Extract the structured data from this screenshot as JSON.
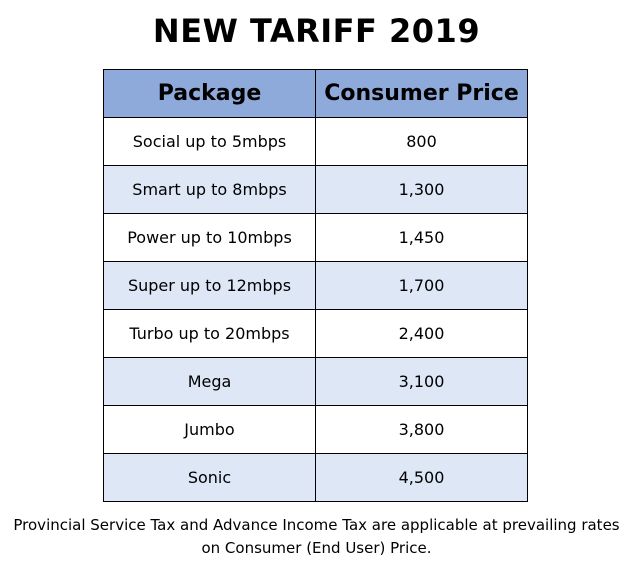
{
  "title": "NEW TARIFF 2019",
  "table": {
    "headers": [
      "Package",
      "Consumer Price"
    ],
    "rows": [
      [
        "Social up to 5mbps",
        "800"
      ],
      [
        "Smart up to 8mbps",
        "1,300"
      ],
      [
        "Power up to 10mbps",
        "1,450"
      ],
      [
        "Super up to 12mbps",
        "1,700"
      ],
      [
        "Turbo up to 20mbps",
        "2,400"
      ],
      [
        "Mega",
        "3,100"
      ],
      [
        "Jumbo",
        "3,800"
      ],
      [
        "Sonic",
        "4,500"
      ]
    ]
  },
  "note": {
    "line1": "Provincial Service Tax and Advance Income Tax are applicable at prevailing rates",
    "line2": "on Consumer (End User) Price."
  }
}
